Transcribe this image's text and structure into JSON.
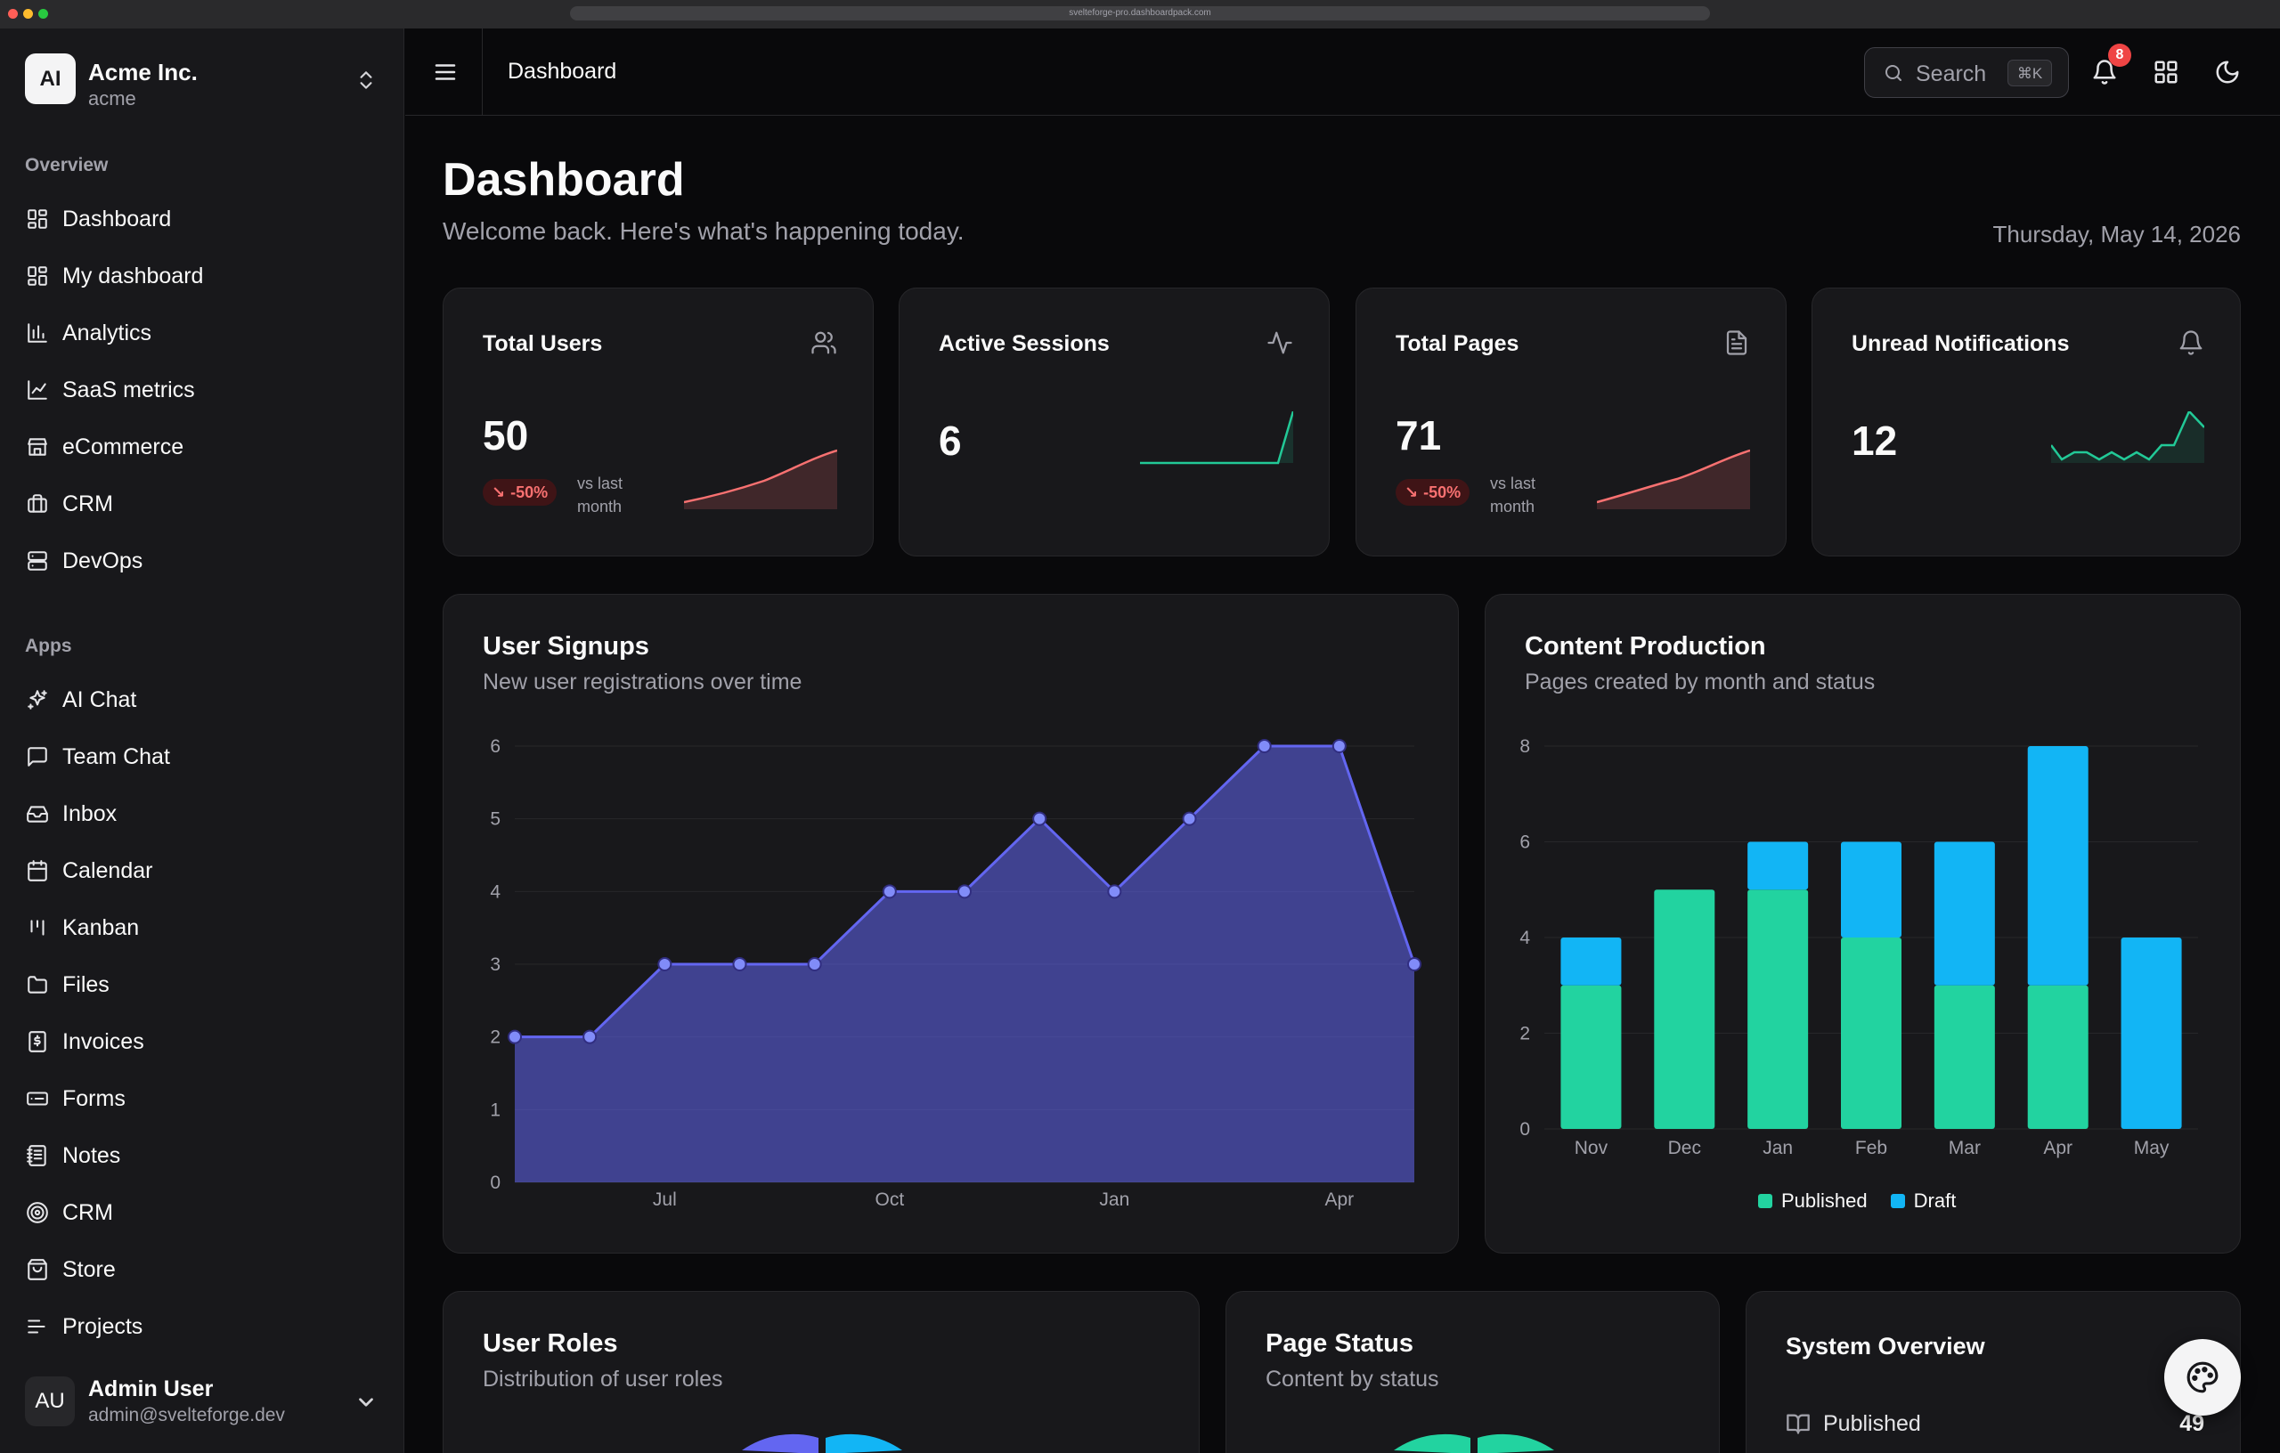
{
  "browser": {
    "url": "svelteforge-pro.dashboardpack.com"
  },
  "org": {
    "initials": "AI",
    "name": "Acme Inc.",
    "slug": "acme"
  },
  "sidebar": {
    "overview_label": "Overview",
    "overview_items": [
      {
        "label": "Dashboard",
        "icon": "layout-dashboard-icon"
      },
      {
        "label": "My dashboard",
        "icon": "layout-dashboard-icon"
      },
      {
        "label": "Analytics",
        "icon": "bar-chart-icon"
      },
      {
        "label": "SaaS metrics",
        "icon": "line-chart-icon"
      },
      {
        "label": "eCommerce",
        "icon": "store-icon"
      },
      {
        "label": "CRM",
        "icon": "briefcase-icon"
      },
      {
        "label": "DevOps",
        "icon": "server-icon"
      }
    ],
    "apps_label": "Apps",
    "apps_items": [
      {
        "label": "AI Chat",
        "icon": "sparkles-icon"
      },
      {
        "label": "Team Chat",
        "icon": "message-square-icon"
      },
      {
        "label": "Inbox",
        "icon": "inbox-icon"
      },
      {
        "label": "Calendar",
        "icon": "calendar-icon"
      },
      {
        "label": "Kanban",
        "icon": "kanban-icon"
      },
      {
        "label": "Files",
        "icon": "folder-icon"
      },
      {
        "label": "Invoices",
        "icon": "receipt-icon"
      },
      {
        "label": "Forms",
        "icon": "form-icon"
      },
      {
        "label": "Notes",
        "icon": "notebook-icon"
      },
      {
        "label": "CRM",
        "icon": "target-icon"
      },
      {
        "label": "Store",
        "icon": "shopping-bag-icon"
      },
      {
        "label": "Projects",
        "icon": "list-icon"
      }
    ]
  },
  "user": {
    "initials": "AU",
    "name": "Admin User",
    "email": "admin@svelteforge.dev"
  },
  "header": {
    "breadcrumb": "Dashboard",
    "search_label": "Search",
    "search_shortcut": "⌘K",
    "notification_count": "8"
  },
  "page": {
    "title": "Dashboard",
    "subtitle": "Welcome back. Here's what's happening today.",
    "date": "Thursday, May 14, 2026"
  },
  "stats": [
    {
      "title": "Total Users",
      "value": "50",
      "delta": "-50%",
      "delta_note": "vs last month",
      "icon": "users-icon",
      "trend": "down"
    },
    {
      "title": "Active Sessions",
      "value": "6",
      "icon": "activity-icon",
      "trend": "up"
    },
    {
      "title": "Total Pages",
      "value": "71",
      "delta": "-50%",
      "delta_note": "vs last month",
      "icon": "file-text-icon",
      "trend": "down"
    },
    {
      "title": "Unread Notifications",
      "value": "12",
      "icon": "bell-icon",
      "trend": "up"
    }
  ],
  "colors": {
    "accent": "#6366f1",
    "published": "#22d3a0",
    "draft": "#12b5f5",
    "negative": "#f87171",
    "positive": "#22c997"
  },
  "signups": {
    "title": "User Signups",
    "subtitle": "New user registrations over time"
  },
  "content": {
    "title": "Content Production",
    "subtitle": "Pages created by month and status"
  },
  "roles": {
    "title": "User Roles",
    "subtitle": "Distribution of user roles"
  },
  "page_status": {
    "title": "Page Status",
    "subtitle": "Content by status"
  },
  "system": {
    "title": "System Overview",
    "row_label": "Published",
    "row_value": "49"
  },
  "chart_data": [
    {
      "type": "area",
      "title": "User Signups",
      "x_ticks": [
        "Jul",
        "Oct",
        "Jan",
        "Apr"
      ],
      "y": [
        2,
        2,
        3,
        3,
        3,
        4,
        4,
        5,
        4,
        5,
        6,
        6,
        3
      ],
      "ylim": [
        0,
        6
      ],
      "y_ticks": [
        0,
        1,
        2,
        3,
        4,
        5,
        6
      ],
      "grid": true
    },
    {
      "type": "bar",
      "title": "Content Production",
      "stacked": true,
      "categories": [
        "Nov",
        "Dec",
        "Jan",
        "Feb",
        "Mar",
        "Apr",
        "May"
      ],
      "series": [
        {
          "name": "Published",
          "values": [
            3,
            5,
            5,
            4,
            3,
            3,
            0
          ]
        },
        {
          "name": "Draft",
          "values": [
            1,
            0,
            1,
            2,
            3,
            5,
            4
          ]
        }
      ],
      "ylim": [
        0,
        8
      ],
      "y_ticks": [
        0,
        2,
        4,
        6,
        8
      ],
      "legend": "bottom",
      "grid": true
    }
  ]
}
